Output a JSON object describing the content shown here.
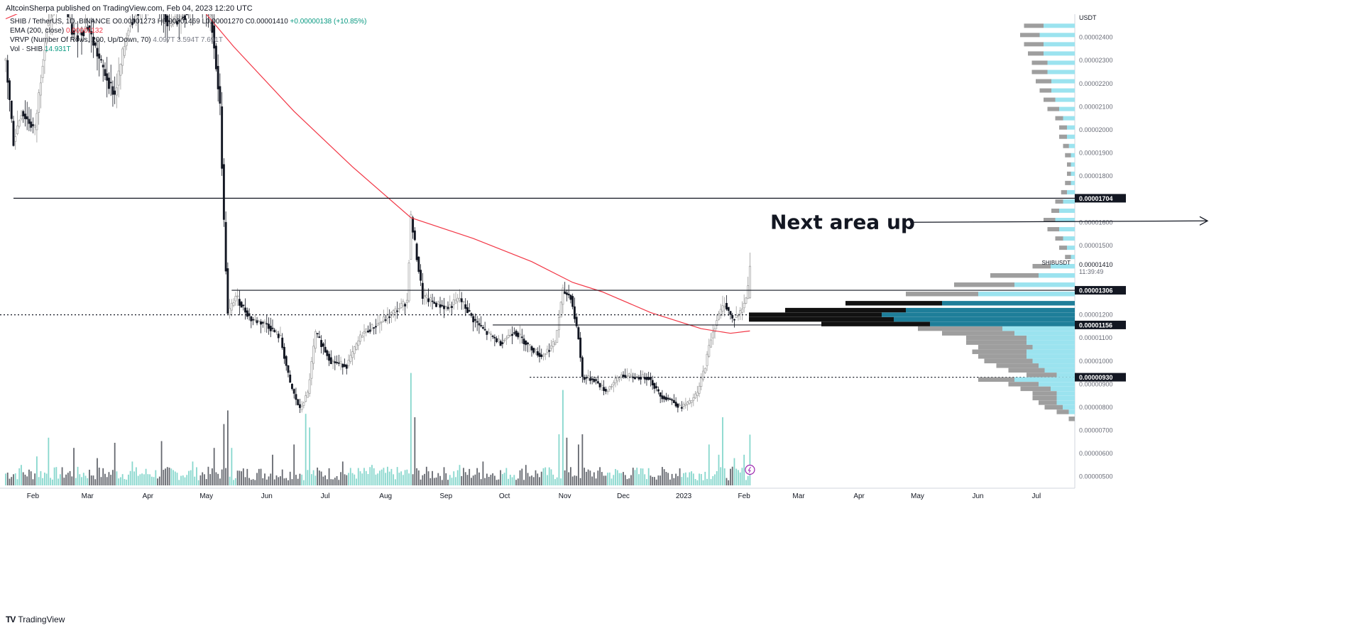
{
  "header": {
    "publisher": "AltcoinSherpa published on TradingView.com, Feb 04, 2023 12:20 UTC"
  },
  "legend": {
    "symbol": "SHIB / TetherUS, 1D, BINANCE",
    "ohlc": "O0.00001273 H0.00001469 L0.00001270 C0.00001410",
    "change": "+0.00000138 (+10.85%)",
    "ema_label": "EMA (200, close)",
    "ema_value": "0.00001132",
    "vrvp_label": "VRVP (Number Of Rows, 200, Up/Down, 70)",
    "vrvp_values": "4.097T 3.594T 7.691T",
    "vol_label": "Vol · SHIB",
    "vol_value": "14.931T"
  },
  "footer": {
    "brand": "TradingView",
    "logo": "TV"
  },
  "colors": {
    "up": "#7ad3c8",
    "down": "#131722",
    "ema": "#f23645",
    "profile_up": "#9be3ef",
    "profile_down": "#9e9e9e",
    "profile_up_hl": "#1e7e99",
    "profile_down_hl": "#111111"
  },
  "chart_data": {
    "type": "candlestick",
    "symbol": "SHIB / TetherUS",
    "timeframe": "1D",
    "exchange": "BINANCE",
    "axis_currency": "USDT",
    "price_ticks": [
      "0.00002400",
      "0.00002300",
      "0.00002200",
      "0.00002100",
      "0.00002000",
      "0.00001900",
      "0.00001800",
      "0.00001600",
      "0.00001500",
      "0.00001200",
      "0.00001100",
      "0.00001000",
      "0.00000900",
      "0.00000800",
      "0.00000700",
      "0.00000600",
      "0.00000500"
    ],
    "price_ylim": [
      4.5e-06,
      2.5e-05
    ],
    "x_labels": [
      "Feb",
      "Mar",
      "Apr",
      "May",
      "Jun",
      "Jul",
      "Aug",
      "Sep",
      "Oct",
      "Nov",
      "Dec",
      "2023",
      "Feb",
      "Mar",
      "Apr",
      "May",
      "Jun",
      "Jul"
    ],
    "x_start": "2022-01-18",
    "x_end": "2023-07-20",
    "price_path": [
      [
        "2022-01-18",
        2.3e-05
      ],
      [
        "2022-01-22",
        1.95e-05
      ],
      [
        "2022-01-26",
        2.08e-05
      ],
      [
        "2022-02-02",
        2e-05
      ],
      [
        "2022-02-08",
        2.45e-05
      ],
      [
        "2022-02-15",
        2.6e-05
      ],
      [
        "2022-02-22",
        2.4e-05
      ],
      [
        "2022-03-01",
        2.45e-05
      ],
      [
        "2022-03-08",
        2.28e-05
      ],
      [
        "2022-03-15",
        2.15e-05
      ],
      [
        "2022-03-22",
        2.45e-05
      ],
      [
        "2022-03-29",
        2.55e-05
      ],
      [
        "2022-04-05",
        2.6e-05
      ],
      [
        "2022-04-12",
        2.45e-05
      ],
      [
        "2022-04-20",
        2.5e-05
      ],
      [
        "2022-04-27",
        2.6e-05
      ],
      [
        "2022-05-04",
        2.45e-05
      ],
      [
        "2022-05-08",
        2.1e-05
      ],
      [
        "2022-05-10",
        1.6e-05
      ],
      [
        "2022-05-12",
        1.2e-05
      ],
      [
        "2022-05-16",
        1.28e-05
      ],
      [
        "2022-05-24",
        1.18e-05
      ],
      [
        "2022-06-01",
        1.16e-05
      ],
      [
        "2022-06-08",
        1.1e-05
      ],
      [
        "2022-06-13",
        9e-06
      ],
      [
        "2022-06-18",
        7.9e-06
      ],
      [
        "2022-06-22",
        8.6e-06
      ],
      [
        "2022-06-26",
        1.12e-05
      ],
      [
        "2022-07-04",
        1e-05
      ],
      [
        "2022-07-12",
        9.8e-06
      ],
      [
        "2022-07-20",
        1.12e-05
      ],
      [
        "2022-07-28",
        1.16e-05
      ],
      [
        "2022-08-05",
        1.21e-05
      ],
      [
        "2022-08-12",
        1.26e-05
      ],
      [
        "2022-08-14",
        1.62e-05
      ],
      [
        "2022-08-17",
        1.45e-05
      ],
      [
        "2022-08-20",
        1.28e-05
      ],
      [
        "2022-08-26",
        1.25e-05
      ],
      [
        "2022-09-02",
        1.23e-05
      ],
      [
        "2022-09-08",
        1.27e-05
      ],
      [
        "2022-09-15",
        1.18e-05
      ],
      [
        "2022-09-22",
        1.12e-05
      ],
      [
        "2022-09-29",
        1.08e-05
      ],
      [
        "2022-10-06",
        1.13e-05
      ],
      [
        "2022-10-13",
        1.07e-05
      ],
      [
        "2022-10-20",
        1.02e-05
      ],
      [
        "2022-10-27",
        1.08e-05
      ],
      [
        "2022-10-31",
        1.3e-05
      ],
      [
        "2022-11-04",
        1.28e-05
      ],
      [
        "2022-11-08",
        1.1e-05
      ],
      [
        "2022-11-10",
        9.3e-06
      ],
      [
        "2022-11-16",
        9.2e-06
      ],
      [
        "2022-11-22",
        8.7e-06
      ],
      [
        "2022-11-30",
        9.4e-06
      ],
      [
        "2022-12-06",
        9.3e-06
      ],
      [
        "2022-12-14",
        9.3e-06
      ],
      [
        "2022-12-20",
        8.5e-06
      ],
      [
        "2022-12-26",
        8.3e-06
      ],
      [
        "2022-12-30",
        8e-06
      ],
      [
        "2023-01-04",
        8.2e-06
      ],
      [
        "2023-01-08",
        8.6e-06
      ],
      [
        "2023-01-12",
        9.8e-06
      ],
      [
        "2023-01-15",
        1.1e-05
      ],
      [
        "2023-01-18",
        1.18e-05
      ],
      [
        "2023-01-22",
        1.25e-05
      ],
      [
        "2023-01-26",
        1.18e-05
      ],
      [
        "2023-01-30",
        1.21e-05
      ],
      [
        "2023-02-02",
        1.27e-05
      ],
      [
        "2023-02-04",
        1.41e-05
      ]
    ],
    "last_candle": {
      "open": 1.273e-05,
      "high": 1.469e-05,
      "low": 1.27e-05,
      "close": 1.41e-05
    },
    "ema_200": [
      [
        "2022-01-18",
        2.48e-05
      ],
      [
        "2022-02-15",
        2.58e-05
      ],
      [
        "2022-03-15",
        2.62e-05
      ],
      [
        "2022-04-15",
        2.58e-05
      ],
      [
        "2022-05-01",
        2.5e-05
      ],
      [
        "2022-05-15",
        2.36e-05
      ],
      [
        "2022-06-15",
        2.08e-05
      ],
      [
        "2022-07-15",
        1.84e-05
      ],
      [
        "2022-08-14",
        1.62e-05
      ],
      [
        "2022-09-15",
        1.53e-05
      ],
      [
        "2022-10-15",
        1.43e-05
      ],
      [
        "2022-11-05",
        1.34e-05
      ],
      [
        "2022-11-20",
        1.3e-05
      ],
      [
        "2022-12-15",
        1.21e-05
      ],
      [
        "2023-01-10",
        1.14e-05
      ],
      [
        "2023-01-25",
        1.12e-05
      ],
      [
        "2023-02-04",
        1.13e-05
      ]
    ],
    "volume_ylim": [
      0,
      25
    ],
    "volume_bars": [
      [
        "2022-01-26",
        6
      ],
      [
        "2022-02-03",
        8.5
      ],
      [
        "2022-02-09",
        14
      ],
      [
        "2022-02-22",
        11
      ],
      [
        "2022-03-06",
        8
      ],
      [
        "2022-03-15",
        12.5
      ],
      [
        "2022-03-24",
        7
      ],
      [
        "2022-04-08",
        13
      ],
      [
        "2022-04-24",
        7
      ],
      [
        "2022-05-05",
        11
      ],
      [
        "2022-05-10",
        18
      ],
      [
        "2022-05-12",
        22
      ],
      [
        "2022-05-14",
        11
      ],
      [
        "2022-06-04",
        9
      ],
      [
        "2022-06-15",
        12
      ],
      [
        "2022-06-21",
        21
      ],
      [
        "2022-06-23",
        17
      ],
      [
        "2022-07-10",
        7
      ],
      [
        "2022-07-25",
        6
      ],
      [
        "2022-08-14",
        33
      ],
      [
        "2022-08-16",
        20
      ],
      [
        "2022-09-08",
        6
      ],
      [
        "2022-09-20",
        7
      ],
      [
        "2022-10-12",
        6
      ],
      [
        "2022-10-29",
        15
      ],
      [
        "2022-10-31",
        28
      ],
      [
        "2022-11-02",
        14
      ],
      [
        "2022-11-08",
        12
      ],
      [
        "2022-11-10",
        15
      ],
      [
        "2022-12-10",
        5
      ],
      [
        "2022-12-30",
        5
      ],
      [
        "2023-01-14",
        12
      ],
      [
        "2023-01-19",
        9
      ],
      [
        "2023-01-21",
        20
      ],
      [
        "2023-01-27",
        8
      ],
      [
        "2023-02-01",
        9
      ],
      [
        "2023-02-04",
        14.9
      ]
    ],
    "horizontal_levels": [
      {
        "price": 1.704e-05,
        "label": "0.00001704",
        "style": "solid"
      },
      {
        "price": 1.306e-05,
        "label": "0.00001306",
        "style": "solid"
      },
      {
        "price": 1.2e-05,
        "label": "",
        "style": "dotted"
      },
      {
        "price": 1.156e-05,
        "label": "0.00001156",
        "style": "solid"
      },
      {
        "price": 9.3e-06,
        "label": "0.00000930",
        "style": "dotted"
      }
    ],
    "last_price_label": {
      "symbol": "SHIBUSDT",
      "price": "0.00001410",
      "countdown": "11:39:49"
    },
    "annotation": {
      "text": "Next area up",
      "arrow": "right"
    },
    "volume_profile": {
      "upper_rows": [
        [
          2.45e-05,
          5,
          8
        ],
        [
          2.41e-05,
          5,
          9
        ],
        [
          2.37e-05,
          5,
          8
        ],
        [
          2.33e-05,
          4,
          8
        ],
        [
          2.29e-05,
          4,
          7
        ],
        [
          2.25e-05,
          4,
          7
        ],
        [
          2.21e-05,
          4,
          6
        ],
        [
          2.17e-05,
          3,
          6
        ],
        [
          2.13e-05,
          3,
          5
        ],
        [
          2.09e-05,
          3,
          4
        ],
        [
          2.05e-05,
          2,
          3
        ],
        [
          2.01e-05,
          2,
          2
        ],
        [
          1.97e-05,
          2,
          2
        ],
        [
          1.93e-05,
          1.5,
          1.5
        ],
        [
          1.89e-05,
          1.5,
          1
        ],
        [
          1.85e-05,
          1,
          1
        ],
        [
          1.81e-05,
          1,
          1
        ],
        [
          1.77e-05,
          1.5,
          1
        ],
        [
          1.73e-05,
          1.5,
          2
        ],
        [
          1.69e-05,
          2,
          3
        ],
        [
          1.65e-05,
          2,
          4
        ],
        [
          1.61e-05,
          3,
          5
        ],
        [
          1.57e-05,
          3,
          4
        ],
        [
          1.53e-05,
          2,
          3
        ],
        [
          1.49e-05,
          2,
          2
        ],
        [
          1.45e-05,
          1.5,
          1
        ]
      ],
      "lower_rows": [
        [
          1.41e-05,
          3,
          4
        ],
        [
          1.37e-05,
          8,
          6
        ],
        [
          1.33e-05,
          10,
          10
        ],
        [
          1.29e-05,
          12,
          16
        ],
        [
          1.25e-05,
          16,
          22
        ],
        [
          1.22e-05,
          20,
          28
        ],
        [
          1.2e-05,
          22,
          32
        ],
        [
          1.18e-05,
          24,
          30
        ],
        [
          1.16e-05,
          18,
          24
        ],
        [
          1.14e-05,
          14,
          12
        ],
        [
          1.12e-05,
          12,
          10
        ],
        [
          1.1e-05,
          10,
          8
        ],
        [
          1.08e-05,
          10,
          8
        ],
        [
          1.06e-05,
          9,
          7
        ],
        [
          1.04e-05,
          9,
          8
        ],
        [
          1.02e-05,
          8,
          8
        ],
        [
          1e-05,
          8,
          7
        ],
        [
          9.8e-06,
          7,
          6
        ],
        [
          9.6e-06,
          6,
          5
        ],
        [
          9.4e-06,
          5,
          3
        ],
        [
          9.2e-06,
          6,
          10
        ],
        [
          9e-06,
          5,
          6
        ],
        [
          8.8e-06,
          5,
          4
        ],
        [
          8.6e-06,
          4,
          3
        ],
        [
          8.4e-06,
          4,
          3
        ],
        [
          8.2e-06,
          3,
          3
        ],
        [
          8e-06,
          3,
          2
        ],
        [
          7.8e-06,
          2,
          1
        ],
        [
          7.5e-06,
          1,
          0
        ]
      ]
    }
  }
}
